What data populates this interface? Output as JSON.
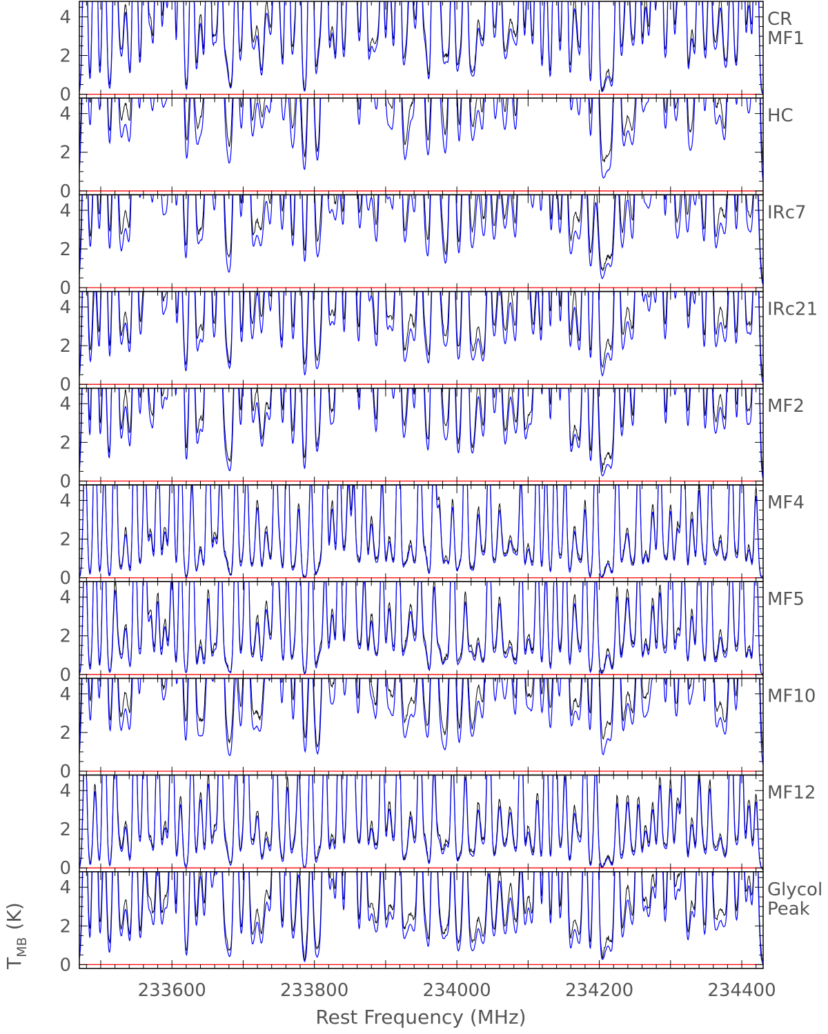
{
  "chart_data": {
    "type": "line",
    "xlabel": "Rest Frequency (MHz)",
    "ylabel_main": "T",
    "ylabel_sub": "MB",
    "ylabel_unit": "(K)",
    "xlim": [
      233470,
      234430
    ],
    "ylim": [
      -0.2,
      4.8
    ],
    "x_ticks": [
      233600,
      233800,
      234000,
      234200,
      234400
    ],
    "y_ticks": [
      0,
      2,
      4
    ],
    "series_colors": {
      "observed": "#000000",
      "model": "#0000ff",
      "baseline": "#ff0000"
    },
    "panels": [
      {
        "label_lines": [
          "CR",
          "MF1"
        ],
        "scale": 1.5,
        "broad": 0.25
      },
      {
        "label_lines": [
          "HC"
        ],
        "scale": 1.15,
        "broad": 0.9
      },
      {
        "label_lines": [
          "IRc7"
        ],
        "scale": 1.05,
        "broad": 0.75
      },
      {
        "label_lines": [
          "IRc21"
        ],
        "scale": 1.1,
        "broad": 0.55
      },
      {
        "label_lines": [
          "MF2"
        ],
        "scale": 1.35,
        "broad": 0.55
      },
      {
        "label_lines": [
          "MF4"
        ],
        "scale": 0.8,
        "broad": 0.1
      },
      {
        "label_lines": [
          "MF5"
        ],
        "scale": 0.85,
        "broad": 0.15
      },
      {
        "label_lines": [
          "MF10"
        ],
        "scale": 1.1,
        "broad": 0.8
      },
      {
        "label_lines": [
          "MF12"
        ],
        "scale": 0.75,
        "broad": 0.15
      },
      {
        "label_lines": [
          "Glycol",
          "Peak"
        ],
        "scale": 1.0,
        "broad": 0.45
      }
    ],
    "strong_lines_mhz": [
      233478,
      233492,
      233505,
      233520,
      233548,
      233562,
      233580,
      233600,
      233612,
      233628,
      233651,
      233668,
      233690,
      233705,
      233745,
      233762,
      233778,
      233795,
      233815,
      233835,
      233848,
      233855,
      233870,
      233895,
      233918,
      233948,
      233968,
      233994,
      234012,
      234045,
      234090,
      234113,
      234125,
      234138,
      234152,
      234180,
      234195,
      234225,
      234255,
      234285,
      234300,
      234318,
      234340,
      234355,
      234385,
      234400,
      234420
    ],
    "medium_lines_mhz": [
      233535,
      233570,
      233590,
      233640,
      233660,
      233720,
      233732,
      233750,
      233825,
      233880,
      233905,
      233935,
      233955,
      233975,
      234030,
      234060,
      234075,
      234100,
      234165,
      234240,
      234265,
      234275,
      234310,
      234330,
      234370,
      234410
    ],
    "weak_lines_mhz": [
      233525,
      233555,
      233598,
      233675,
      233700,
      233712,
      233738,
      233772,
      233808,
      233842,
      233862,
      233888,
      233912,
      233928,
      233942,
      233985,
      234005,
      234020,
      234038,
      234052,
      234068,
      234082,
      234106,
      234145,
      234172,
      234212,
      234235,
      234248,
      234292,
      234345,
      234362,
      234378,
      234392
    ]
  }
}
